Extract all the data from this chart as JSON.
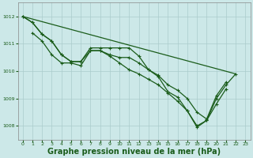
{
  "background_color": "#cce8e8",
  "grid_color": "#aacccc",
  "line_color": "#1a5c1a",
  "xlabel": "Graphe pression niveau de la mer (hPa)",
  "xlabel_fontsize": 7,
  "ylim": [
    1007.5,
    1012.5
  ],
  "xlim": [
    -0.5,
    23.5
  ],
  "xticks": [
    0,
    1,
    2,
    3,
    4,
    5,
    6,
    7,
    8,
    9,
    10,
    11,
    12,
    13,
    14,
    15,
    16,
    17,
    18,
    19,
    20,
    21,
    22,
    23
  ],
  "yticks": [
    1008,
    1009,
    1010,
    1011,
    1012
  ],
  "line1_x": [
    0,
    1,
    2,
    3,
    4,
    5,
    6,
    7,
    8,
    9,
    10,
    11,
    12,
    13,
    14,
    15,
    16,
    17,
    18,
    19,
    20,
    21,
    22
  ],
  "line1_y": [
    1012.0,
    1011.78,
    1011.35,
    1011.1,
    1010.6,
    1010.35,
    1010.35,
    1010.85,
    1010.85,
    1010.85,
    1010.85,
    1010.85,
    1010.55,
    1010.05,
    1009.8,
    1009.25,
    1009.05,
    1008.55,
    1008.0,
    1008.2,
    1009.0,
    1009.5,
    1009.9
  ],
  "line2_x": [
    0,
    1,
    2,
    3,
    4,
    5,
    6,
    7,
    8,
    9,
    10,
    11,
    12,
    13,
    14,
    15,
    16,
    17,
    18,
    19,
    20,
    21
  ],
  "line2_y": [
    1012.0,
    1011.78,
    1011.35,
    1011.1,
    1010.6,
    1010.35,
    1010.35,
    1010.75,
    1010.75,
    1010.6,
    1010.5,
    1010.5,
    1010.3,
    1010.05,
    1009.85,
    1009.5,
    1009.3,
    1009.0,
    1008.5,
    1008.25,
    1009.1,
    1009.6
  ],
  "line3_x": [
    1,
    2,
    3,
    4,
    5,
    6,
    7,
    8,
    9,
    10,
    11,
    12,
    13,
    14,
    15,
    16,
    17,
    18,
    19,
    20,
    21
  ],
  "line3_y": [
    1011.4,
    1011.1,
    1010.6,
    1010.3,
    1010.3,
    1010.2,
    1010.75,
    1010.75,
    1010.55,
    1010.3,
    1010.05,
    1009.9,
    1009.7,
    1009.5,
    1009.2,
    1008.9,
    1008.55,
    1007.95,
    1008.2,
    1008.8,
    1009.35
  ],
  "line4_x": [
    0,
    22
  ],
  "line4_y": [
    1012.0,
    1009.9
  ]
}
